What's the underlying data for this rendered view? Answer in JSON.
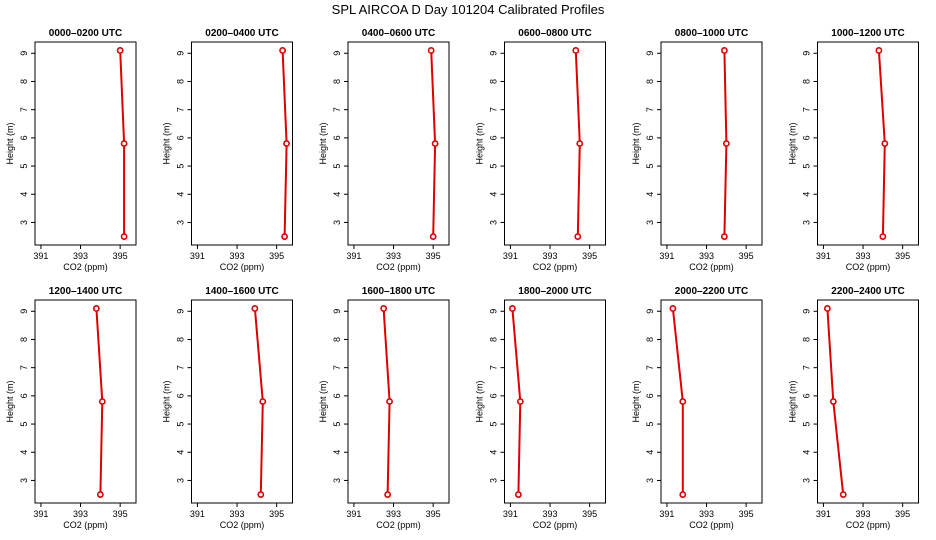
{
  "title": "SPL AIRCOA D  Day 101204  Calibrated Profiles",
  "colors": {
    "series": "#dd0000",
    "frame": "#000000",
    "background": "#ffffff"
  },
  "chart_data": [
    {
      "type": "line",
      "title": "0000–0200 UTC",
      "xlabel": "CO2 (ppm)",
      "ylabel": "Height (m)",
      "xlim": [
        390.7,
        395.8
      ],
      "ylim": [
        2.2,
        9.4
      ],
      "xticks": [
        391,
        393,
        395
      ],
      "yticks": [
        3,
        4,
        5,
        6,
        7,
        8,
        9
      ],
      "grid": false,
      "series": [
        {
          "x": [
            395.0,
            395.2,
            395.2
          ],
          "y": [
            9.1,
            5.8,
            2.5
          ]
        }
      ]
    },
    {
      "type": "line",
      "title": "0200–0400 UTC",
      "xlabel": "CO2 (ppm)",
      "ylabel": "Height (m)",
      "xlim": [
        390.7,
        395.8
      ],
      "ylim": [
        2.2,
        9.4
      ],
      "xticks": [
        391,
        393,
        395
      ],
      "yticks": [
        3,
        4,
        5,
        6,
        7,
        8,
        9
      ],
      "grid": false,
      "series": [
        {
          "x": [
            395.3,
            395.5,
            395.4
          ],
          "y": [
            9.1,
            5.8,
            2.5
          ]
        }
      ]
    },
    {
      "type": "line",
      "title": "0400–0600 UTC",
      "xlabel": "CO2 (ppm)",
      "ylabel": "Height (m)",
      "xlim": [
        390.7,
        395.8
      ],
      "ylim": [
        2.2,
        9.4
      ],
      "xticks": [
        391,
        393,
        395
      ],
      "yticks": [
        3,
        4,
        5,
        6,
        7,
        8,
        9
      ],
      "grid": false,
      "series": [
        {
          "x": [
            394.9,
            395.1,
            395.0
          ],
          "y": [
            9.1,
            5.8,
            2.5
          ]
        }
      ]
    },
    {
      "type": "line",
      "title": "0600–0800 UTC",
      "xlabel": "CO2 (ppm)",
      "ylabel": "Height (m)",
      "xlim": [
        390.7,
        395.8
      ],
      "ylim": [
        2.2,
        9.4
      ],
      "xticks": [
        391,
        393,
        395
      ],
      "yticks": [
        3,
        4,
        5,
        6,
        7,
        8,
        9
      ],
      "grid": false,
      "series": [
        {
          "x": [
            394.3,
            394.5,
            394.4
          ],
          "y": [
            9.1,
            5.8,
            2.5
          ]
        }
      ]
    },
    {
      "type": "line",
      "title": "0800–1000 UTC",
      "xlabel": "CO2 (ppm)",
      "ylabel": "Height (m)",
      "xlim": [
        390.7,
        395.8
      ],
      "ylim": [
        2.2,
        9.4
      ],
      "xticks": [
        391,
        393,
        395
      ],
      "yticks": [
        3,
        4,
        5,
        6,
        7,
        8,
        9
      ],
      "grid": false,
      "series": [
        {
          "x": [
            393.9,
            394.0,
            393.9
          ],
          "y": [
            9.1,
            5.8,
            2.5
          ]
        }
      ]
    },
    {
      "type": "line",
      "title": "1000–1200 UTC",
      "xlabel": "CO2 (ppm)",
      "ylabel": "Height (m)",
      "xlim": [
        390.7,
        395.8
      ],
      "ylim": [
        2.2,
        9.4
      ],
      "xticks": [
        391,
        393,
        395
      ],
      "yticks": [
        3,
        4,
        5,
        6,
        7,
        8,
        9
      ],
      "grid": false,
      "series": [
        {
          "x": [
            393.8,
            394.1,
            394.0
          ],
          "y": [
            9.1,
            5.8,
            2.5
          ]
        }
      ]
    },
    {
      "type": "line",
      "title": "1200–1400 UTC",
      "xlabel": "CO2 (ppm)",
      "ylabel": "Height (m)",
      "xlim": [
        390.7,
        395.8
      ],
      "ylim": [
        2.2,
        9.4
      ],
      "xticks": [
        391,
        393,
        395
      ],
      "yticks": [
        3,
        4,
        5,
        6,
        7,
        8,
        9
      ],
      "grid": false,
      "series": [
        {
          "x": [
            393.8,
            394.1,
            394.0
          ],
          "y": [
            9.1,
            5.8,
            2.5
          ]
        }
      ]
    },
    {
      "type": "line",
      "title": "1400–1600 UTC",
      "xlabel": "CO2 (ppm)",
      "ylabel": "Height (m)",
      "xlim": [
        390.7,
        395.8
      ],
      "ylim": [
        2.2,
        9.4
      ],
      "xticks": [
        391,
        393,
        395
      ],
      "yticks": [
        3,
        4,
        5,
        6,
        7,
        8,
        9
      ],
      "grid": false,
      "series": [
        {
          "x": [
            393.9,
            394.3,
            394.2
          ],
          "y": [
            9.1,
            5.8,
            2.5
          ]
        }
      ]
    },
    {
      "type": "line",
      "title": "1600–1800 UTC",
      "xlabel": "CO2 (ppm)",
      "ylabel": "Height (m)",
      "xlim": [
        390.7,
        395.8
      ],
      "ylim": [
        2.2,
        9.4
      ],
      "xticks": [
        391,
        393,
        395
      ],
      "yticks": [
        3,
        4,
        5,
        6,
        7,
        8,
        9
      ],
      "grid": false,
      "series": [
        {
          "x": [
            392.5,
            392.8,
            392.7
          ],
          "y": [
            9.1,
            5.8,
            2.5
          ]
        }
      ]
    },
    {
      "type": "line",
      "title": "1800–2000 UTC",
      "xlabel": "CO2 (ppm)",
      "ylabel": "Height (m)",
      "xlim": [
        390.7,
        395.8
      ],
      "ylim": [
        2.2,
        9.4
      ],
      "xticks": [
        391,
        393,
        395
      ],
      "yticks": [
        3,
        4,
        5,
        6,
        7,
        8,
        9
      ],
      "grid": false,
      "series": [
        {
          "x": [
            391.1,
            391.5,
            391.4
          ],
          "y": [
            9.1,
            5.8,
            2.5
          ]
        }
      ]
    },
    {
      "type": "line",
      "title": "2000–2200 UTC",
      "xlabel": "CO2 (ppm)",
      "ylabel": "Height (m)",
      "xlim": [
        390.7,
        395.8
      ],
      "ylim": [
        2.2,
        9.4
      ],
      "xticks": [
        391,
        393,
        395
      ],
      "yticks": [
        3,
        4,
        5,
        6,
        7,
        8,
        9
      ],
      "grid": false,
      "series": [
        {
          "x": [
            391.3,
            391.8,
            391.8
          ],
          "y": [
            9.1,
            5.8,
            2.5
          ]
        }
      ]
    },
    {
      "type": "line",
      "title": "2200–2400 UTC",
      "xlabel": "CO2 (ppm)",
      "ylabel": "Height (m)",
      "xlim": [
        390.7,
        395.8
      ],
      "ylim": [
        2.2,
        9.4
      ],
      "xticks": [
        391,
        393,
        395
      ],
      "yticks": [
        3,
        4,
        5,
        6,
        7,
        8,
        9
      ],
      "grid": false,
      "series": [
        {
          "x": [
            391.2,
            391.5,
            392.0
          ],
          "y": [
            9.1,
            5.8,
            2.5
          ]
        }
      ]
    }
  ]
}
